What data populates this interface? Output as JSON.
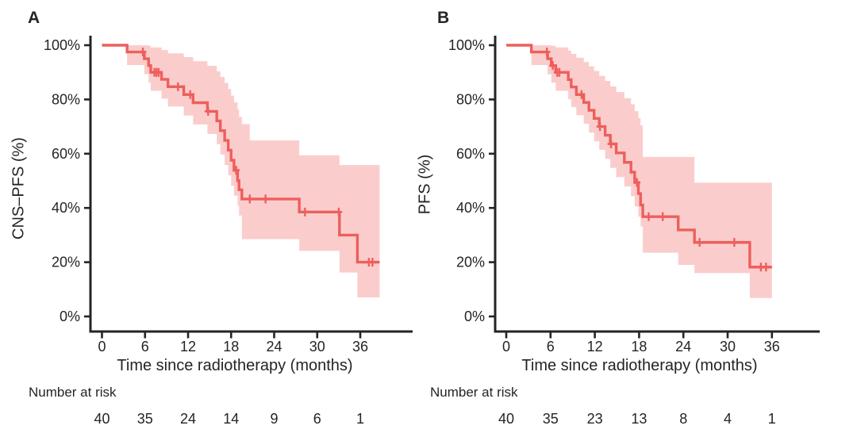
{
  "figure_title": "",
  "colors": {
    "curve": "#ed5f5c",
    "band": "#facdcc",
    "axis": "#272324",
    "text": "#272324",
    "background": "#ffffff"
  },
  "chart_data": [
    {
      "type": "line",
      "subtype": "kaplan-meier-step",
      "panel_label": "A",
      "ylabel": "CNS–PFS (%)",
      "xlabel": "Time since radiotherapy (months)",
      "xticks": [
        0,
        6,
        12,
        18,
        24,
        30,
        36
      ],
      "ytick_labels": [
        "100%",
        "80%",
        "60%",
        "40%",
        "20%",
        "0%"
      ],
      "ytick_values": [
        100,
        80,
        60,
        40,
        20,
        0
      ],
      "xlim": [
        0,
        39
      ],
      "ylim": [
        0,
        100
      ],
      "grid": "off",
      "legend": "none",
      "end_time": 38.7,
      "km_steps": [
        [
          0,
          100
        ],
        [
          3.5,
          97.5
        ],
        [
          5.9,
          95.0
        ],
        [
          6.5,
          92.5
        ],
        [
          6.8,
          90.0
        ],
        [
          8.3,
          87.4
        ],
        [
          9.2,
          84.7
        ],
        [
          11.4,
          81.8
        ],
        [
          12.7,
          78.8
        ],
        [
          14.7,
          75.6
        ],
        [
          16.0,
          72.1
        ],
        [
          16.5,
          68.5
        ],
        [
          17.1,
          64.9
        ],
        [
          17.6,
          61.3
        ],
        [
          18.0,
          57.6
        ],
        [
          18.4,
          53.9
        ],
        [
          18.9,
          50.1
        ],
        [
          19.1,
          46.7
        ],
        [
          19.5,
          43.3
        ],
        [
          27.5,
          38.5
        ],
        [
          33.1,
          30.0
        ],
        [
          35.6,
          20.0
        ]
      ],
      "censor_marks": [
        [
          5.7,
          97.5
        ],
        [
          7.3,
          90.0
        ],
        [
          7.6,
          90.0
        ],
        [
          7.9,
          90.0
        ],
        [
          10.6,
          84.7
        ],
        [
          12.3,
          81.8
        ],
        [
          14.8,
          75.6
        ],
        [
          18.7,
          53.9
        ],
        [
          20.6,
          43.3
        ],
        [
          22.8,
          43.3
        ],
        [
          28.3,
          38.5
        ],
        [
          33.0,
          38.5
        ],
        [
          37.2,
          20.0
        ],
        [
          37.7,
          20.0
        ]
      ],
      "ci_band": [
        [
          3.5,
          92.7,
          100
        ],
        [
          5.9,
          89.3,
          100
        ],
        [
          6.5,
          86.2,
          99.8
        ],
        [
          6.8,
          83.2,
          99.2
        ],
        [
          8.3,
          80.3,
          98.2
        ],
        [
          9.2,
          77.4,
          97.0
        ],
        [
          11.4,
          74.1,
          95.6
        ],
        [
          12.7,
          70.8,
          94.1
        ],
        [
          14.7,
          67.3,
          92.4
        ],
        [
          16.0,
          63.5,
          90.4
        ],
        [
          16.5,
          59.7,
          88.3
        ],
        [
          17.1,
          55.8,
          86.1
        ],
        [
          17.6,
          52.0,
          83.8
        ],
        [
          18.0,
          48.2,
          81.4
        ],
        [
          18.4,
          44.5,
          78.9
        ],
        [
          18.9,
          40.8,
          76.3
        ],
        [
          19.1,
          37.2,
          73.6
        ],
        [
          19.5,
          28.5,
          70.9
        ],
        [
          20.6,
          28.5,
          64.9
        ],
        [
          27.5,
          24.2,
          59.4
        ],
        [
          33.1,
          16.2,
          55.8
        ],
        [
          35.6,
          7.0,
          55.8
        ]
      ],
      "number_at_risk": {
        "label": "Number at risk",
        "times": [
          0,
          6,
          12,
          18,
          24,
          30,
          36
        ],
        "values": [
          40,
          35,
          24,
          14,
          9,
          6,
          1
        ]
      }
    },
    {
      "type": "line",
      "subtype": "kaplan-meier-step",
      "panel_label": "B",
      "ylabel": "PFS (%)",
      "xlabel": "Time since radiotherapy (months)",
      "xticks": [
        0,
        6,
        12,
        18,
        24,
        30,
        36
      ],
      "ytick_labels": [
        "100%",
        "80%",
        "60%",
        "40%",
        "20%",
        "0%"
      ],
      "ytick_values": [
        100,
        80,
        60,
        40,
        20,
        0
      ],
      "xlim": [
        0,
        39
      ],
      "ylim": [
        0,
        100
      ],
      "grid": "off",
      "legend": "none",
      "end_time": 36.0,
      "km_steps": [
        [
          0,
          100
        ],
        [
          3.4,
          97.5
        ],
        [
          5.6,
          95.0
        ],
        [
          6.1,
          92.5
        ],
        [
          6.7,
          90.0
        ],
        [
          8.4,
          87.3
        ],
        [
          8.8,
          84.6
        ],
        [
          9.5,
          81.8
        ],
        [
          10.5,
          78.9
        ],
        [
          11.2,
          76.0
        ],
        [
          11.9,
          73.0
        ],
        [
          12.6,
          70.0
        ],
        [
          13.4,
          66.8
        ],
        [
          14.1,
          63.6
        ],
        [
          14.9,
          60.3
        ],
        [
          16.0,
          56.8
        ],
        [
          16.9,
          53.2
        ],
        [
          17.4,
          49.4
        ],
        [
          17.9,
          45.3
        ],
        [
          18.2,
          41.1
        ],
        [
          18.5,
          36.8
        ],
        [
          23.3,
          31.9
        ],
        [
          25.5,
          27.3
        ],
        [
          33.0,
          18.2
        ]
      ],
      "censor_marks": [
        [
          5.5,
          97.5
        ],
        [
          6.3,
          92.5
        ],
        [
          6.9,
          90.0
        ],
        [
          7.2,
          90.0
        ],
        [
          10.2,
          81.8
        ],
        [
          12.7,
          70.0
        ],
        [
          14.2,
          63.6
        ],
        [
          17.7,
          49.4
        ],
        [
          19.3,
          36.8
        ],
        [
          21.2,
          36.8
        ],
        [
          26.2,
          27.3
        ],
        [
          30.9,
          27.3
        ],
        [
          34.5,
          18.2
        ],
        [
          35.2,
          18.2
        ]
      ],
      "ci_band": [
        [
          3.4,
          92.7,
          100
        ],
        [
          5.6,
          89.3,
          100
        ],
        [
          6.1,
          86.2,
          99.8
        ],
        [
          6.7,
          83.2,
          99.2
        ],
        [
          8.4,
          80.1,
          98.0
        ],
        [
          8.8,
          77.2,
          96.8
        ],
        [
          9.5,
          74.2,
          95.4
        ],
        [
          10.5,
          71.0,
          93.8
        ],
        [
          11.2,
          67.8,
          92.2
        ],
        [
          11.9,
          64.6,
          90.5
        ],
        [
          12.6,
          61.4,
          88.7
        ],
        [
          13.4,
          58.1,
          86.8
        ],
        [
          14.1,
          54.8,
          84.8
        ],
        [
          14.9,
          51.4,
          82.7
        ],
        [
          16.0,
          47.9,
          80.5
        ],
        [
          16.9,
          44.3,
          78.2
        ],
        [
          17.4,
          40.5,
          75.7
        ],
        [
          17.9,
          36.8,
          73.1
        ],
        [
          18.2,
          33.2,
          70.4
        ],
        [
          18.5,
          23.5,
          58.8
        ],
        [
          23.3,
          19.0,
          58.8
        ],
        [
          25.5,
          16.0,
          49.3
        ],
        [
          33.0,
          6.8,
          49.3
        ]
      ],
      "number_at_risk": {
        "label": "Number at risk",
        "times": [
          0,
          6,
          12,
          18,
          24,
          30,
          36
        ],
        "values": [
          40,
          35,
          23,
          13,
          8,
          4,
          1
        ]
      }
    }
  ]
}
